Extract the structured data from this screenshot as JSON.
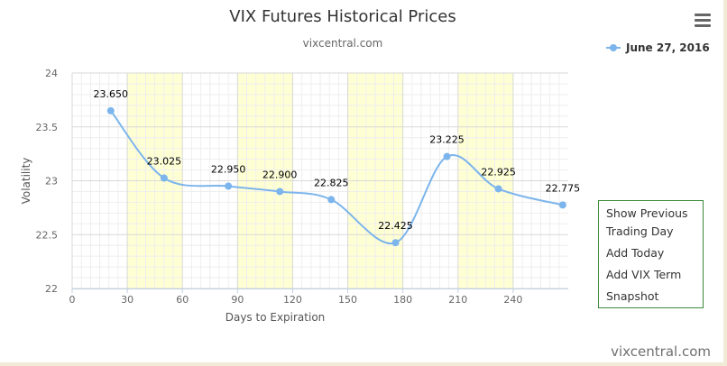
{
  "chart_data": {
    "type": "line",
    "title": "VIX Futures Historical Prices",
    "subtitle": "vixcentral.com",
    "xlabel": "Days to Expiration",
    "ylabel": "Volatility",
    "xlim": [
      0,
      270
    ],
    "ylim": [
      22,
      24
    ],
    "x_ticks": [
      "0",
      "30",
      "60",
      "90",
      "120",
      "150",
      "180",
      "210",
      "240"
    ],
    "y_ticks": [
      "22",
      "22.5",
      "23",
      "23.5",
      "24"
    ],
    "grid": true,
    "legend_position": "top-right",
    "band_color": "#ffffd4",
    "series": [
      {
        "name": "June 27, 2016",
        "color": "#7cb5ec",
        "x": [
          21,
          50,
          85,
          113,
          141,
          176,
          204,
          232,
          267
        ],
        "y": [
          23.65,
          23.025,
          22.95,
          22.9,
          22.825,
          22.425,
          23.225,
          22.925,
          22.775
        ],
        "labels": [
          "23.650",
          "23.025",
          "22.950",
          "22.900",
          "22.825",
          "22.425",
          "23.225",
          "22.925",
          "22.775"
        ]
      }
    ]
  },
  "menu": {
    "icon": "hamburger-menu-icon"
  },
  "actions": [
    {
      "label": "Show Previous Trading Day"
    },
    {
      "label": "Add Today"
    },
    {
      "label": "Add VIX Term"
    },
    {
      "label": "Snapshot"
    }
  ],
  "watermark": "vixcentral.com"
}
